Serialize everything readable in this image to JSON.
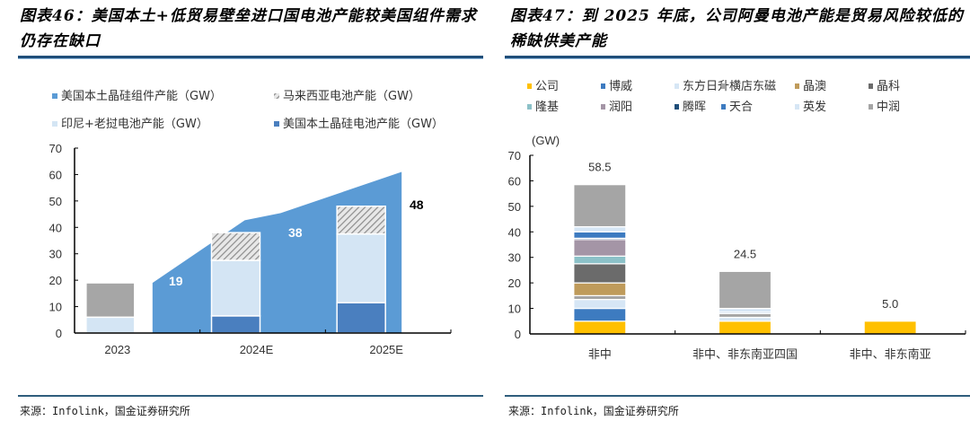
{
  "left": {
    "title": "图表46：美国本土+低贸易壁垒进口国电池产能较美国组件需求仍存在缺口",
    "source": "来源：Infolink，国金证券研究所"
  },
  "right": {
    "title": "图表47：到 2025 年底，公司阿曼电池产能是贸易风险较低的稀缺供美产能",
    "source": "来源：Infolink，国金证券研究所"
  },
  "chart_data": [
    {
      "type": "bar",
      "subtype": "stacked bar with area overlay",
      "title": "美国本土+低贸易壁垒进口国电池产能较美国组件需求仍存在缺口",
      "categories": [
        "2023",
        "2024E",
        "2025E"
      ],
      "xlabel": "",
      "ylabel": "",
      "ylim": [
        0,
        70
      ],
      "yticks": [
        0,
        10,
        20,
        30,
        40,
        50,
        60,
        70
      ],
      "legend_position": "top",
      "area_series": {
        "name": "美国本土晶硅组件产能（GW）",
        "color": "#5b9bd5",
        "x": [
          "2023",
          "2024E",
          "2025E"
        ],
        "values": [
          19,
          42,
          61
        ]
      },
      "series": [
        {
          "name": "美国本土晶硅电池产能（GW）",
          "color": "#4a7fbf",
          "values": [
            0,
            6.5,
            11.5
          ]
        },
        {
          "name": "印尼+老挝电池产能（GW）",
          "color": "#d4e5f4",
          "values": [
            6,
            21,
            26
          ]
        },
        {
          "name": "马来西亚电池产能（GW）",
          "color": "#a6a6a6",
          "pattern": "hatch",
          "values": [
            13,
            10.5,
            10.5
          ]
        }
      ],
      "legend": [
        "美国本土晶硅组件产能（GW）",
        "马来西亚电池产能（GW）",
        "印尼+老挝电池产能（GW）",
        "美国本土晶硅电池产能（GW）"
      ],
      "data_labels": [
        {
          "category": "2023",
          "text": "19"
        },
        {
          "category": "2024E",
          "text": "38"
        },
        {
          "category": "2025E",
          "text": "48"
        }
      ]
    },
    {
      "type": "bar",
      "subtype": "stacked",
      "title": "到 2025 年底，公司阿曼电池产能是贸易风险较低的稀缺供美产能",
      "categories": [
        "非中",
        "非中、非东南亚四国",
        "非中、非东南亚"
      ],
      "xlabel": "",
      "ylabel": "(GW)",
      "ylim": [
        0,
        70
      ],
      "yticks": [
        0,
        10,
        20,
        30,
        40,
        50,
        60,
        70
      ],
      "legend_position": "top",
      "series": [
        {
          "name": "公司",
          "color": "#ffc000",
          "values": [
            5,
            5,
            5
          ]
        },
        {
          "name": "博威",
          "color": "#3d7bc0",
          "values": [
            5,
            0,
            0
          ]
        },
        {
          "name": "东方日升",
          "color": "#d6e6f5",
          "values": [
            3.5,
            1.5,
            0
          ]
        },
        {
          "name": "横店东磁",
          "color": "#a5a5a5",
          "values": [
            1.5,
            1.5,
            0
          ]
        },
        {
          "name": "晶澳",
          "color": "#bf9b5b",
          "values": [
            5,
            0,
            0
          ]
        },
        {
          "name": "晶科",
          "color": "#6b6b6b",
          "values": [
            7.5,
            0,
            0
          ]
        },
        {
          "name": "隆基",
          "color": "#8cc1c8",
          "values": [
            3,
            0,
            0
          ]
        },
        {
          "name": "润阳",
          "color": "#a495a6",
          "values": [
            6.5,
            0,
            0
          ]
        },
        {
          "name": "腾晖",
          "color": "#1f4e79",
          "values": [
            0.5,
            0,
            0
          ]
        },
        {
          "name": "天合",
          "color": "#3d7bc0",
          "values": [
            2.5,
            0.5,
            0
          ]
        },
        {
          "name": "英发",
          "color": "#d6e6f5",
          "values": [
            2,
            1.5,
            0
          ]
        },
        {
          "name": "中润",
          "color": "#a5a5a5",
          "values": [
            16.5,
            14.5,
            0
          ]
        }
      ],
      "totals": [
        "58.5",
        "24.5",
        "5.0"
      ]
    }
  ]
}
